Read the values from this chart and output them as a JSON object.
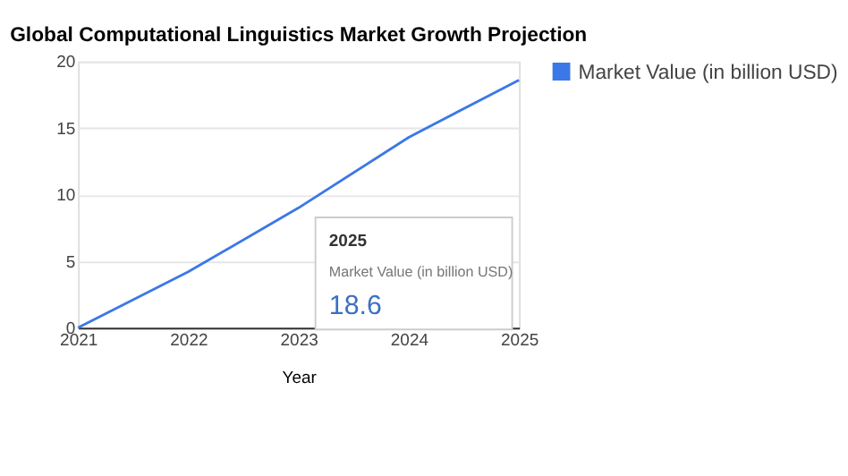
{
  "chart_data": {
    "type": "line",
    "title": "Global Computational Linguistics Market Growth Projection",
    "xlabel": "Year",
    "categories": [
      "2021",
      "2022",
      "2023",
      "2024",
      "2025"
    ],
    "series": [
      {
        "name": "Market Value (in billion USD)",
        "color": "#3b78e7",
        "values": [
          0,
          4.2,
          9.0,
          14.3,
          18.6
        ]
      }
    ],
    "ylim": [
      0,
      20
    ],
    "yticks": [
      0,
      5,
      10,
      15,
      20
    ],
    "grid": "y",
    "legend": "top right",
    "marker": "none",
    "line_style": "solid",
    "annotations": [
      "2025",
      "Market Value (in billion USD)",
      "18.6"
    ]
  }
}
